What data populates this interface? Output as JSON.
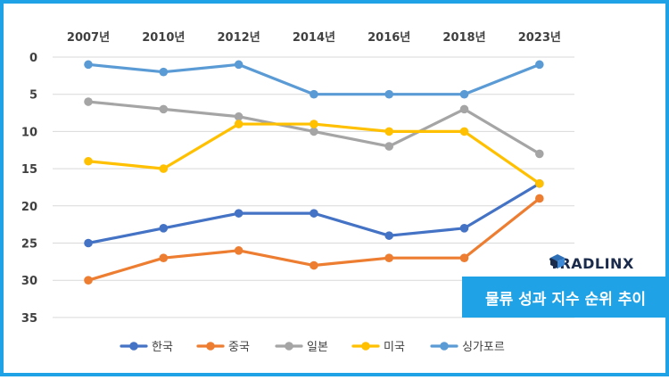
{
  "chart_data": {
    "type": "line",
    "categories": [
      "2007년",
      "2010년",
      "2012년",
      "2014년",
      "2016년",
      "2018년",
      "2023년"
    ],
    "y_ticks": [
      "0",
      "5",
      "10",
      "15",
      "20",
      "25",
      "30",
      "35"
    ],
    "ylim": [
      0,
      35
    ],
    "y_inverted": true,
    "x_axis_position": "top",
    "grid": true,
    "legend_position": "bottom",
    "series": [
      {
        "name": "한국",
        "color": "#4472c4",
        "values": [
          25,
          23,
          21,
          21,
          24,
          23,
          17
        ]
      },
      {
        "name": "중국",
        "color": "#ed7d31",
        "values": [
          30,
          27,
          26,
          28,
          27,
          27,
          19
        ]
      },
      {
        "name": "일본",
        "color": "#a5a5a5",
        "values": [
          6,
          7,
          8,
          10,
          12,
          7,
          13
        ]
      },
      {
        "name": "미국",
        "color": "#ffc000",
        "values": [
          14,
          15,
          9,
          9,
          10,
          10,
          17
        ]
      },
      {
        "name": "싱가포르",
        "color": "#5b9bd5",
        "values": [
          1,
          2,
          1,
          5,
          5,
          5,
          1
        ]
      }
    ]
  },
  "brand": {
    "name": "TRADLINX",
    "color": "#1b2b4b",
    "icon": "cube-icon"
  },
  "banner": {
    "text": "물류 성과 지수 순위 추이",
    "color": "#1fa3e6"
  }
}
